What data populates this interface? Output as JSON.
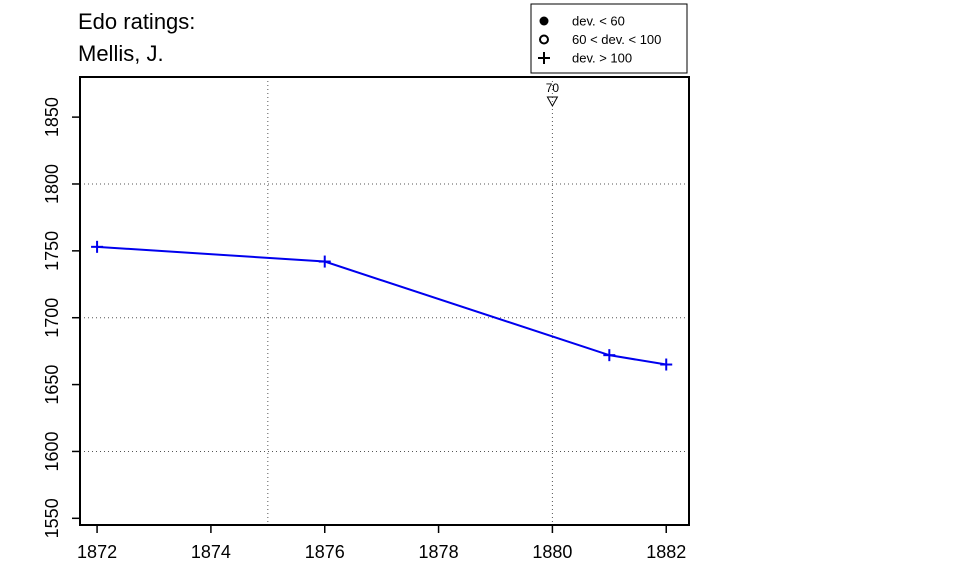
{
  "chart_data": {
    "type": "line",
    "title_lines": [
      "Edo ratings:",
      "Mellis, J."
    ],
    "xlabel": "",
    "ylabel": "",
    "xlim": [
      1871.7,
      1882.4
    ],
    "ylim": [
      1545,
      1880
    ],
    "x_ticks": [
      1872,
      1874,
      1876,
      1878,
      1880,
      1882
    ],
    "y_ticks": [
      1550,
      1600,
      1650,
      1700,
      1750,
      1800,
      1850
    ],
    "grid_x": [
      1875,
      1880
    ],
    "grid_y": [
      1600,
      1700,
      1800
    ],
    "series": [
      {
        "color": "#0000ee",
        "marker": "plus",
        "x": [
          1872,
          1876,
          1881,
          1882
        ],
        "y": [
          1753,
          1742,
          1672,
          1665
        ]
      }
    ],
    "annotations": [
      {
        "x": 1880,
        "label": "70",
        "marker": "down-triangle"
      }
    ],
    "legend": {
      "position": "top-right",
      "entries": [
        {
          "label": "dev. < 60",
          "marker": "filled-circle"
        },
        {
          "label": "60 < dev. < 100",
          "marker": "open-circle"
        },
        {
          "label": "dev. > 100",
          "marker": "plus"
        }
      ]
    }
  }
}
